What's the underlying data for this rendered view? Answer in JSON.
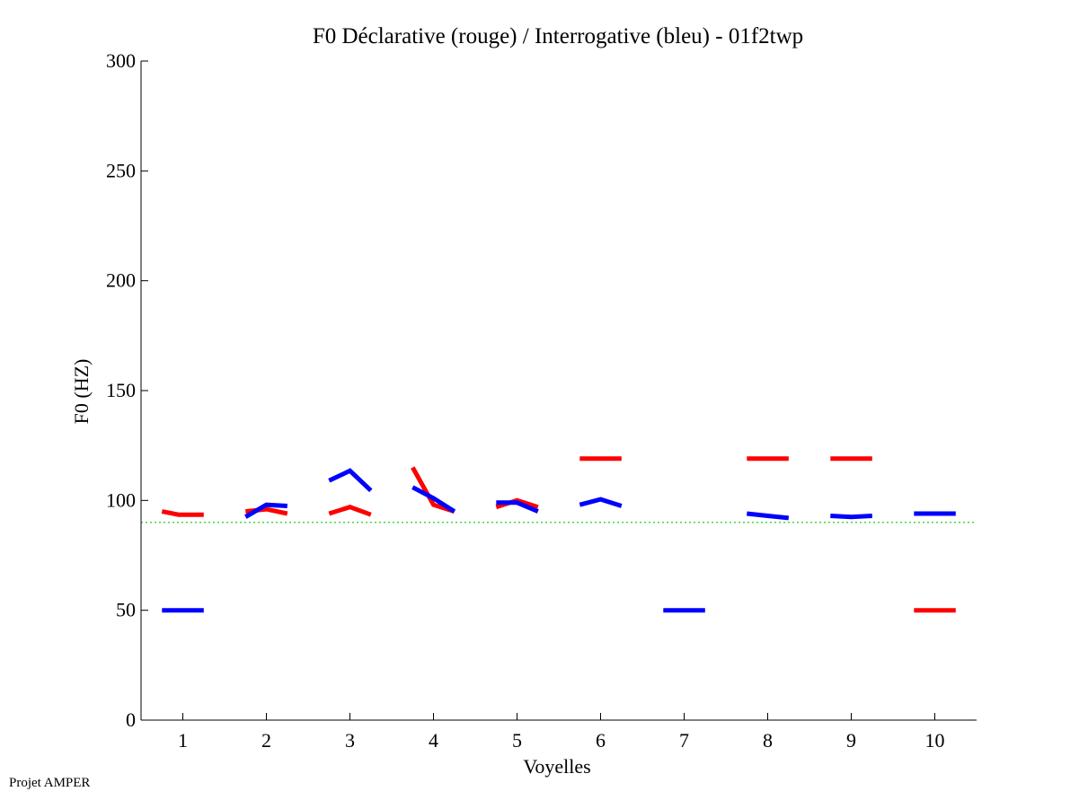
{
  "chart_data": {
    "type": "line",
    "title": "F0 Déclarative (rouge) / Interrogative (bleu) - 01f2twp",
    "xlabel": "Voyelles",
    "ylabel": "F0 (HZ)",
    "xlim": [
      0.5,
      10.5
    ],
    "ylim": [
      0,
      300
    ],
    "xticks": [
      1,
      2,
      3,
      4,
      5,
      6,
      7,
      8,
      9,
      10
    ],
    "yticks": [
      0,
      50,
      100,
      150,
      200,
      250,
      300
    ],
    "grid": false,
    "reference_line": {
      "y": 90,
      "color": "#00cc00",
      "style": "dotted"
    },
    "series": [
      {
        "name": "Déclarative (rouge)",
        "color": "#ff0000",
        "segments": [
          {
            "vowel": 1,
            "x": [
              0.75,
              0.95,
              1.25
            ],
            "y": [
              95,
              93.5,
              93.5
            ]
          },
          {
            "vowel": 2,
            "x": [
              1.75,
              2.0,
              2.25
            ],
            "y": [
              95,
              96,
              94
            ]
          },
          {
            "vowel": 3,
            "x": [
              2.75,
              3.0,
              3.25
            ],
            "y": [
              94,
              97,
              93.5
            ]
          },
          {
            "vowel": 4,
            "x": [
              3.75,
              4.0,
              4.25
            ],
            "y": [
              115,
              98,
              95
            ]
          },
          {
            "vowel": 5,
            "x": [
              4.75,
              5.0,
              5.25
            ],
            "y": [
              97,
              100,
              97
            ]
          },
          {
            "vowel": 6,
            "x": [
              5.75,
              6.0,
              6.25
            ],
            "y": [
              119,
              119,
              119
            ]
          },
          {
            "vowel": 8,
            "x": [
              7.75,
              8.0,
              8.25
            ],
            "y": [
              119,
              119,
              119
            ]
          },
          {
            "vowel": 9,
            "x": [
              8.75,
              9.0,
              9.25
            ],
            "y": [
              119,
              119,
              119
            ]
          },
          {
            "vowel": 10,
            "x": [
              9.75,
              10.0,
              10.25
            ],
            "y": [
              50,
              50,
              50
            ]
          }
        ]
      },
      {
        "name": "Interrogative (bleu)",
        "color": "#0000ff",
        "segments": [
          {
            "vowel": 1,
            "x": [
              0.75,
              1.0,
              1.25
            ],
            "y": [
              50,
              50,
              50
            ]
          },
          {
            "vowel": 2,
            "x": [
              1.75,
              2.0,
              2.25
            ],
            "y": [
              92.5,
              98,
              97.5
            ]
          },
          {
            "vowel": 3,
            "x": [
              2.75,
              3.0,
              3.25
            ],
            "y": [
              109,
              113.5,
              104.5
            ]
          },
          {
            "vowel": 4,
            "x": [
              3.75,
              4.0,
              4.25
            ],
            "y": [
              106,
              101,
              95
            ]
          },
          {
            "vowel": 5,
            "x": [
              4.75,
              5.0,
              5.25
            ],
            "y": [
              99,
              99,
              95
            ]
          },
          {
            "vowel": 6,
            "x": [
              5.75,
              6.0,
              6.25
            ],
            "y": [
              98,
              100.5,
              97.5
            ]
          },
          {
            "vowel": 7,
            "x": [
              6.75,
              7.0,
              7.25
            ],
            "y": [
              50,
              50,
              50
            ]
          },
          {
            "vowel": 8,
            "x": [
              7.75,
              8.0,
              8.25
            ],
            "y": [
              94,
              93,
              92
            ]
          },
          {
            "vowel": 9,
            "x": [
              8.75,
              9.0,
              9.25
            ],
            "y": [
              93,
              92.5,
              93
            ]
          },
          {
            "vowel": 10,
            "x": [
              9.75,
              10.0,
              10.25
            ],
            "y": [
              94,
              94,
              94
            ]
          }
        ]
      }
    ]
  },
  "footer": {
    "credit": "Projet AMPER"
  }
}
